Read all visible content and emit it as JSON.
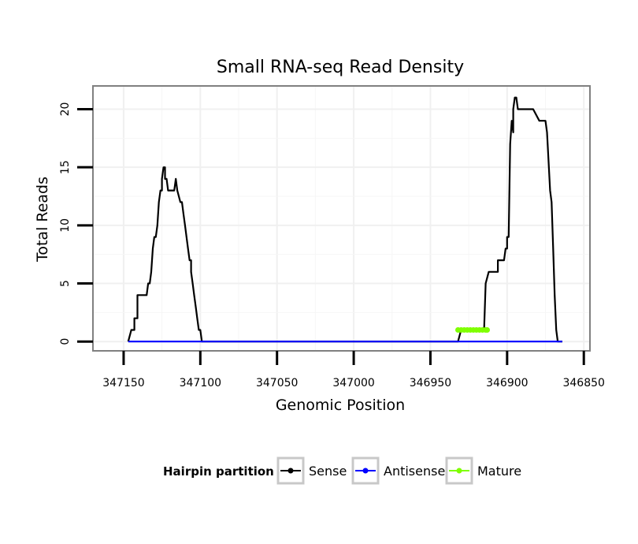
{
  "chart_data": {
    "type": "line",
    "title": "Small RNA-seq Read Density",
    "xlabel": "Genomic Position",
    "ylabel": "Total Reads",
    "xlim": [
      347170,
      346846
    ],
    "ylim": [
      -0.8,
      22
    ],
    "x_reversed": true,
    "x_ticks": [
      347150,
      347100,
      347050,
      347000,
      346950,
      346900,
      346850
    ],
    "x_tick_labels": [
      "347150",
      "347100",
      "347050",
      "347000",
      "346950",
      "346900",
      "346850"
    ],
    "y_ticks": [
      0,
      5,
      10,
      15,
      20
    ],
    "y_tick_labels": [
      "0",
      "5",
      "10",
      "15",
      "20"
    ],
    "grid": true,
    "legend": {
      "title": "Hairpin partition",
      "position": "bottom",
      "entries": [
        "Sense",
        "Antisense",
        "Mature"
      ]
    },
    "series": [
      {
        "name": "Sense",
        "color": "#000000",
        "x": [
          347147,
          347145,
          347143,
          347143,
          347141,
          347141,
          347137,
          347135,
          347134,
          347133,
          347132,
          347131,
          347130,
          347129,
          347128,
          347127,
          347126,
          347125,
          347125,
          347124,
          347123,
          347123,
          347122,
          347121,
          347120,
          347119,
          347117,
          347116,
          347115,
          347113,
          347112,
          347111,
          347110,
          347110,
          347109,
          347108,
          347107,
          347106,
          347106,
          347105,
          347104,
          347103,
          347102,
          347101,
          347100,
          347099,
          347098,
          347096,
          346932,
          346930,
          346915,
          346914,
          346912,
          346911,
          346910,
          346910,
          346906,
          346906,
          346904,
          346902,
          346901,
          346900,
          346900,
          346899,
          346898,
          346897,
          346896,
          346896,
          346895,
          346894,
          346893,
          346891,
          346890,
          346887,
          346886,
          346883,
          346879,
          346875,
          346874,
          346872,
          346871,
          346870,
          346869,
          346868,
          346867,
          346866,
          346866,
          346865,
          346864
        ],
        "values": [
          0,
          1,
          1,
          2,
          2,
          4,
          4,
          4,
          5,
          5,
          6,
          8,
          9,
          9,
          10,
          12,
          13,
          13,
          14,
          15,
          15,
          14,
          14,
          13,
          13,
          13,
          13,
          14,
          13,
          12,
          12,
          11,
          10,
          10,
          9,
          8,
          7,
          7,
          6,
          5,
          4,
          3,
          2,
          1,
          1,
          0,
          0,
          0,
          0,
          1,
          1,
          5,
          6,
          6,
          6,
          6,
          6,
          7,
          7,
          7,
          8,
          8,
          9,
          9,
          17,
          19,
          18,
          20,
          21,
          21,
          20,
          20,
          20,
          20,
          20,
          20,
          19,
          19,
          18,
          13,
          12,
          8,
          4,
          1,
          0,
          0,
          0,
          0,
          0
        ]
      },
      {
        "name": "Antisense",
        "color": "#0000ff",
        "x": [
          347147,
          346864
        ],
        "values": [
          0,
          0
        ]
      },
      {
        "name": "Mature",
        "color": "#7fff00",
        "x": [
          346932,
          346930,
          346928,
          346926,
          346924,
          346922,
          346920,
          346918,
          346916,
          346914,
          346913
        ],
        "values": [
          1,
          1,
          1,
          1,
          1,
          1,
          1,
          1,
          1,
          1,
          1
        ]
      }
    ]
  }
}
